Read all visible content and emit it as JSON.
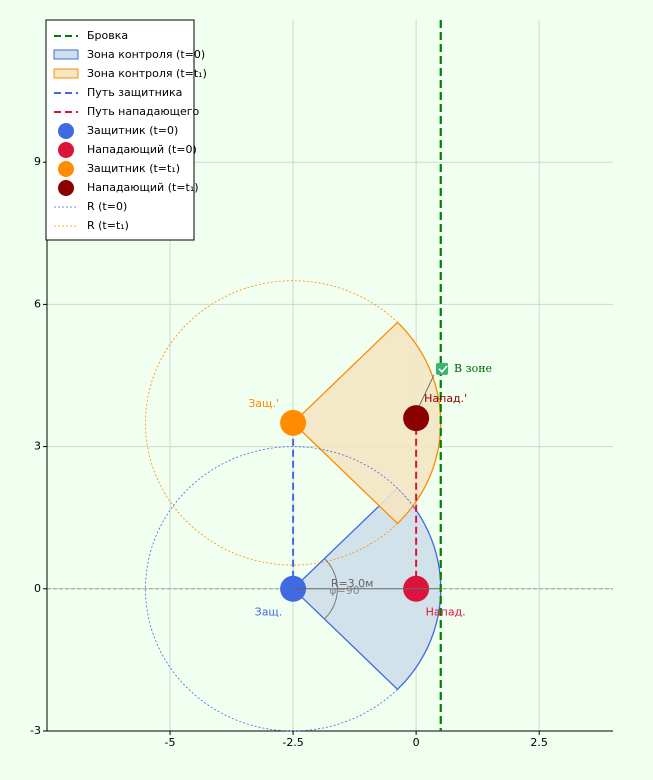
{
  "chart_data": {
    "type": "scatter",
    "xlim": [
      -7.5,
      4
    ],
    "ylim": [
      -3,
      12
    ],
    "xticks": [
      -5.0,
      -2.5,
      0.0,
      2.5
    ],
    "yticks": [
      -3,
      0,
      3,
      6,
      9
    ],
    "grid": true,
    "legend_position": "upper left",
    "series": [
      {
        "name": "Бровка",
        "kind": "vline",
        "color": "#008000",
        "x": [
          0.5
        ]
      },
      {
        "name": "Зона контроля (t=0)",
        "kind": "sector",
        "color": "#4169e1",
        "fill": "#cddfea",
        "x": [
          -2.5
        ],
        "y": [
          0
        ],
        "radius": 3,
        "angles": [
          -45,
          45
        ]
      },
      {
        "name": "Зона контроля (t=t₁)",
        "kind": "sector",
        "color": "#ff8c00",
        "fill": "#f3e6c3",
        "x": [
          -2.5
        ],
        "y": [
          3.5
        ],
        "radius": 3,
        "angles": [
          -45,
          45
        ]
      },
      {
        "name": "Путь защитника",
        "kind": "path",
        "color": "#4169e1",
        "x": [
          -2.5,
          -2.5
        ],
        "y": [
          0,
          3.5
        ]
      },
      {
        "name": "Путь нападающего",
        "kind": "path",
        "color": "#dc143c",
        "x": [
          0,
          0
        ],
        "y": [
          0,
          3.6
        ]
      },
      {
        "name": "Защитник (t=0)",
        "kind": "point",
        "color": "#4169e1",
        "x": [
          -2.5
        ],
        "y": [
          0
        ]
      },
      {
        "name": "Нападающий (t=0)",
        "kind": "point",
        "color": "#dc143c",
        "x": [
          0
        ],
        "y": [
          0
        ]
      },
      {
        "name": "Защитник (t=t₁)",
        "kind": "point",
        "color": "#ff8c00",
        "x": [
          -2.5
        ],
        "y": [
          3.5
        ]
      },
      {
        "name": "Нападающий (t=t₁)",
        "kind": "point",
        "color": "#8b0000",
        "x": [
          0
        ],
        "y": [
          3.6
        ]
      },
      {
        "name": "R (t=0)",
        "kind": "circle",
        "color": "#4169e1",
        "x": [
          -2.5
        ],
        "y": [
          0
        ],
        "radius": 3
      },
      {
        "name": "R (t=t₁)",
        "kind": "circle",
        "color": "#ff8c00",
        "x": [
          -2.5
        ],
        "y": [
          3.5
        ],
        "radius": 3
      }
    ],
    "annotations": [
      {
        "text": "Защ.",
        "color": "#4169e1",
        "x": -3.0,
        "y": -0.5
      },
      {
        "text": "Напад.",
        "color": "#dc143c",
        "x": 0.6,
        "y": -0.5
      },
      {
        "text": "Защ.'",
        "color": "#ff8c00",
        "x": -3.1,
        "y": 3.9
      },
      {
        "text": "Напад.'",
        "color": "#8b0000",
        "x": 0.6,
        "y": 4.0
      },
      {
        "text": "R=3.0м",
        "color": "#666666",
        "x": -1.3,
        "y": 0.1
      },
      {
        "text": "φ=90°",
        "color": "#888888",
        "x": -1.4,
        "y": -0.05
      },
      {
        "text": "В зоне",
        "color": "#006400",
        "x": 0.77,
        "y": 4.64
      }
    ]
  }
}
